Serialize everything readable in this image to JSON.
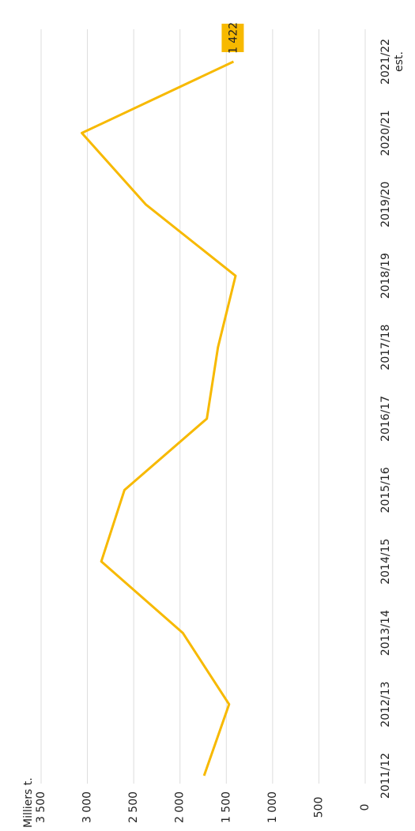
{
  "chart_data": {
    "type": "line",
    "y_label": "Milliers t.",
    "categories": [
      "2011/12",
      "2012/13",
      "2013/14",
      "2014/15",
      "2015/16",
      "2016/17",
      "2017/18",
      "2018/19",
      "2019/20",
      "2020/21",
      "2021/22 est."
    ],
    "series": [
      {
        "color": "#f7b900",
        "values": [
          1740,
          1470,
          1970,
          2850,
          2600,
          1710,
          1590,
          1400,
          2370,
          3060,
          1422
        ],
        "value_labels": [
          null,
          null,
          null,
          null,
          null,
          null,
          null,
          null,
          null,
          null,
          "1 422"
        ]
      }
    ],
    "ylim": [
      0,
      3500
    ],
    "yticks": [
      0,
      500,
      {
        "value": 1000,
        "label": "1 000"
      },
      {
        "value": 1500,
        "label": "1 500"
      },
      {
        "value": 2000,
        "label": "2 000"
      },
      {
        "value": 2500,
        "label": "2 500"
      },
      {
        "value": 3000,
        "label": "3 000"
      },
      {
        "value": 3500,
        "label": "3 500"
      }
    ],
    "grid": true
  }
}
